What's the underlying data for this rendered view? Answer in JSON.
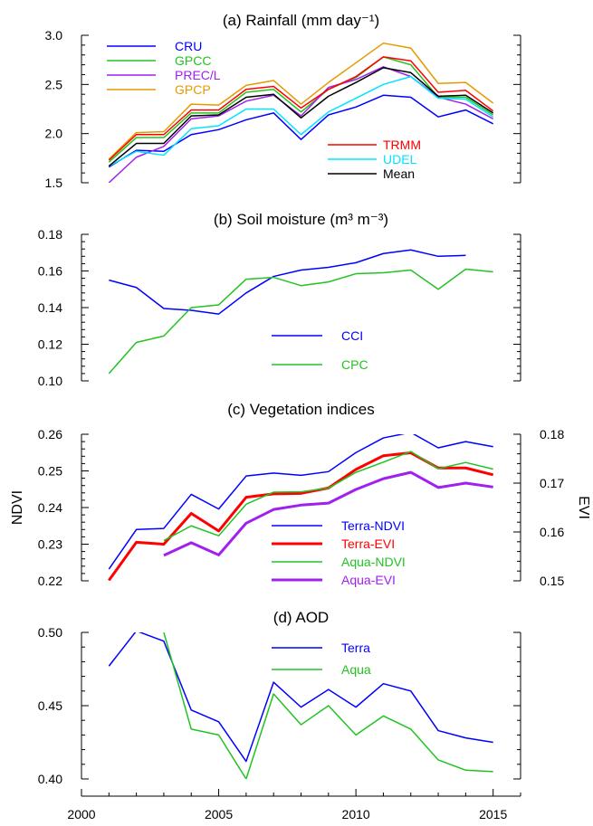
{
  "chart_data": [
    {
      "type": "line",
      "title": "(a) Rainfall (mm day⁻¹)",
      "ylabel": "",
      "ylim": [
        1.5,
        3.0
      ],
      "yticks": [
        "1.5",
        "2.0",
        "2.5",
        "3.0"
      ],
      "x": [
        2001,
        2002,
        2003,
        2004,
        2005,
        2006,
        2007,
        2008,
        2009,
        2010,
        2011,
        2012,
        2013,
        2014,
        2015
      ],
      "series": [
        {
          "name": "CRU",
          "color": "#0000ff",
          "values": [
            1.66,
            1.83,
            1.82,
            1.99,
            2.04,
            2.14,
            2.21,
            1.94,
            2.19,
            2.27,
            2.39,
            2.37,
            2.17,
            2.24,
            2.1
          ]
        },
        {
          "name": "GPCC",
          "color": "#22c322",
          "values": [
            1.71,
            1.96,
            1.96,
            2.21,
            2.21,
            2.42,
            2.45,
            2.22,
            2.45,
            2.57,
            2.78,
            2.7,
            2.37,
            2.37,
            2.19
          ]
        },
        {
          "name": "PREC/L",
          "color": "#a020f0",
          "values": [
            1.5,
            1.76,
            1.87,
            2.15,
            2.18,
            2.33,
            2.39,
            2.18,
            2.47,
            2.55,
            2.68,
            2.58,
            2.37,
            2.3,
            2.15
          ]
        },
        {
          "name": "GPCP",
          "color": "#e69a00",
          "values": [
            1.74,
            2.01,
            2.02,
            2.3,
            2.29,
            2.49,
            2.54,
            2.3,
            2.52,
            2.72,
            2.92,
            2.87,
            2.51,
            2.52,
            2.31
          ]
        },
        {
          "name": "TRMM",
          "color": "#ff0000",
          "values": [
            1.73,
            1.99,
            1.99,
            2.24,
            2.24,
            2.45,
            2.48,
            2.26,
            2.45,
            2.58,
            2.78,
            2.74,
            2.42,
            2.44,
            2.23
          ]
        },
        {
          "name": "UDEL",
          "color": "#00e5ff",
          "values": [
            1.67,
            1.82,
            1.78,
            2.05,
            2.08,
            2.25,
            2.25,
            1.99,
            2.22,
            2.36,
            2.5,
            2.58,
            2.36,
            2.35,
            2.17
          ]
        },
        {
          "name": "Mean",
          "color": "#000000",
          "values": [
            1.67,
            1.9,
            1.9,
            2.18,
            2.19,
            2.37,
            2.4,
            2.16,
            2.38,
            2.52,
            2.67,
            2.62,
            2.38,
            2.39,
            2.21
          ]
        }
      ],
      "legend_groups": [
        [
          "CRU",
          "GPCC",
          "PREC/L",
          "GPCP"
        ],
        [
          "TRMM",
          "UDEL",
          "Mean"
        ]
      ]
    },
    {
      "type": "line",
      "title": "(b) Soil moisture (m³ m⁻³)",
      "ylabel": "",
      "ylim": [
        0.1,
        0.18
      ],
      "yticks": [
        "0.10",
        "0.12",
        "0.14",
        "0.16",
        "0.18"
      ],
      "x": [
        2001,
        2002,
        2003,
        2004,
        2005,
        2006,
        2007,
        2008,
        2009,
        2010,
        2011,
        2012,
        2013,
        2014,
        2015
      ],
      "series": [
        {
          "name": "CCI",
          "color": "#0000ff",
          "values": [
            0.155,
            0.151,
            0.1395,
            0.1385,
            0.1365,
            0.148,
            0.157,
            0.1605,
            0.162,
            0.1645,
            0.1695,
            0.1715,
            0.168,
            0.1685,
            null
          ]
        },
        {
          "name": "CPC",
          "color": "#22c322",
          "values": [
            0.104,
            0.121,
            0.1245,
            0.14,
            0.1415,
            0.1555,
            0.1565,
            0.152,
            0.154,
            0.1585,
            0.159,
            0.1605,
            0.15,
            0.161,
            0.1595
          ]
        }
      ]
    },
    {
      "type": "line",
      "title": "(c) Vegetation indices",
      "ylabel": "NDVI",
      "ylabel_right": "EVI",
      "ylim": [
        0.22,
        0.26
      ],
      "ylim_right": [
        0.15,
        0.18
      ],
      "yticks": [
        "0.22",
        "0.23",
        "0.24",
        "0.25",
        "0.26"
      ],
      "yticks_right": [
        "0.15",
        "0.16",
        "0.17",
        "0.18"
      ],
      "x": [
        2001,
        2002,
        2003,
        2004,
        2005,
        2006,
        2007,
        2008,
        2009,
        2010,
        2011,
        2012,
        2013,
        2014,
        2015
      ],
      "series": [
        {
          "name": "Terra-NDVI",
          "axis": "left",
          "color": "#0000ff",
          "width": 1.5,
          "values": [
            0.2232,
            0.234,
            0.2343,
            0.2436,
            0.2396,
            0.2486,
            0.2494,
            0.2488,
            0.2498,
            0.255,
            0.259,
            0.2605,
            0.2563,
            0.258,
            0.2566
          ]
        },
        {
          "name": "Terra-EVI",
          "axis": "right",
          "color": "#ff0000",
          "width": 3,
          "values": [
            0.1501,
            0.1579,
            0.1575,
            0.1638,
            0.1602,
            0.1671,
            0.1678,
            0.1679,
            0.169,
            0.1728,
            0.1756,
            0.1762,
            0.1731,
            0.1731,
            0.1717
          ]
        },
        {
          "name": "Aqua-NDVI",
          "axis": "left",
          "color": "#22c322",
          "width": 1.5,
          "values": [
            null,
            null,
            0.231,
            0.235,
            0.2323,
            0.2409,
            0.2442,
            0.2443,
            0.2453,
            0.2496,
            0.2524,
            0.2553,
            0.2506,
            0.2523,
            0.2505
          ]
        },
        {
          "name": "Aqua-EVI",
          "axis": "right",
          "color": "#a020f0",
          "width": 3,
          "values": [
            null,
            null,
            0.1552,
            0.1578,
            0.1553,
            0.1618,
            0.1646,
            0.1655,
            0.1659,
            0.1687,
            0.1709,
            0.1722,
            0.1691,
            0.17,
            0.1692
          ]
        }
      ]
    },
    {
      "type": "line",
      "title": "(d) AOD",
      "ylabel": "",
      "ylim": [
        0.4,
        0.5
      ],
      "yticks": [
        "0.40",
        "0.45",
        "0.50"
      ],
      "x": [
        2001,
        2002,
        2003,
        2004,
        2005,
        2006,
        2007,
        2008,
        2009,
        2010,
        2011,
        2012,
        2013,
        2014,
        2015
      ],
      "series": [
        {
          "name": "Terra",
          "color": "#0000ff",
          "values": [
            0.477,
            0.501,
            0.494,
            0.447,
            0.439,
            0.412,
            0.466,
            0.449,
            0.461,
            0.449,
            0.465,
            0.46,
            0.433,
            0.428,
            0.425
          ]
        },
        {
          "name": "Aqua",
          "color": "#22c322",
          "values": [
            null,
            null,
            0.5,
            0.434,
            0.43,
            0.4,
            0.458,
            0.437,
            0.45,
            0.43,
            0.443,
            0.434,
            0.413,
            0.406,
            0.405
          ]
        }
      ]
    }
  ],
  "x_axis": {
    "ticks": [
      2000,
      2005,
      2010,
      2015
    ],
    "tick_labels": [
      "2000",
      "2005",
      "2010",
      "2015"
    ],
    "range": [
      2000,
      2016
    ]
  }
}
